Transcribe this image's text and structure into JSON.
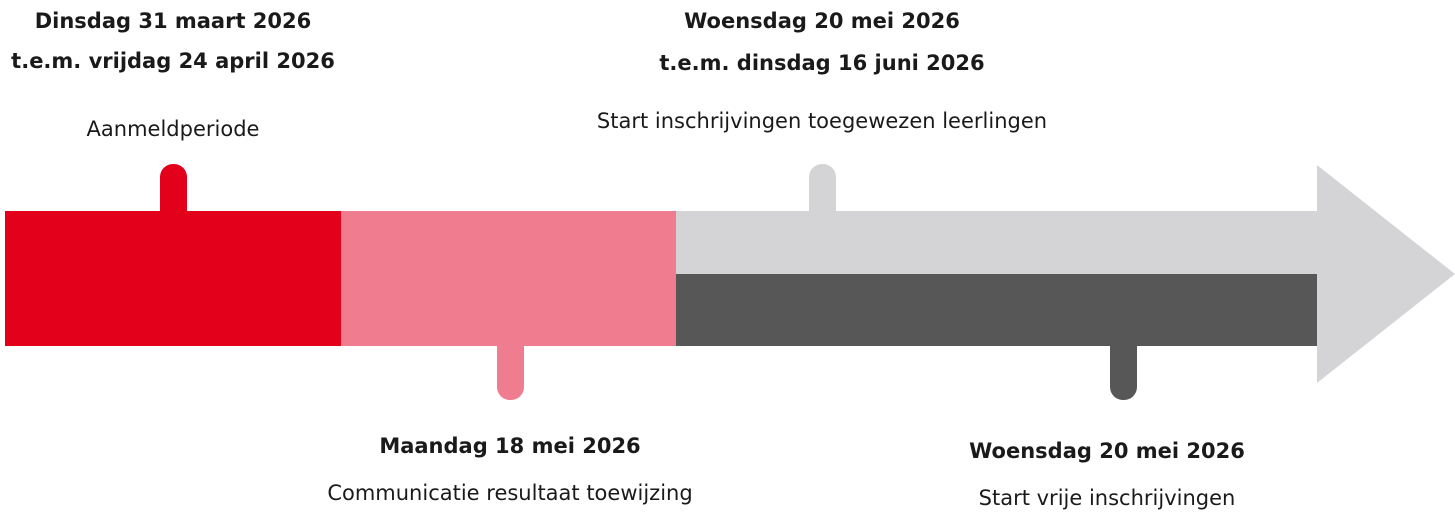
{
  "events": [
    {
      "date_line1": "Dinsdag 31 maart 2026",
      "date_line2": "t.e.m. vrijdag 24 april 2026",
      "label": "Aanmeldperiode"
    },
    {
      "date_line1": "Maandag 18 mei 2026",
      "label": "Communicatie resultaat toewijzing"
    },
    {
      "date_line1": "Woensdag 20 mei 2026",
      "date_line2": "t.e.m. dinsdag 16 juni 2026",
      "label": "Start inschrijvingen toegewezen leerlingen"
    },
    {
      "date_line1": "Woensdag 20 mei 2026",
      "label": "Start vrije inschrijvingen"
    }
  ]
}
